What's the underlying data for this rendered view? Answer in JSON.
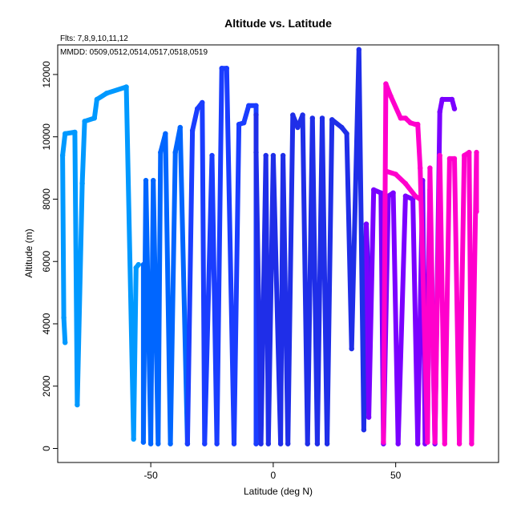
{
  "chart_data": {
    "type": "line",
    "title": "Altitude vs. Latitude",
    "subtitle_flights": "Flts: 7,8,9,10,11,12",
    "subtitle_dates": "MMDD: 0509,0512,0514,0517,0518,0519",
    "xlabel": "Latitude (deg N)",
    "ylabel": "Altitude (m)",
    "xlim": [
      -88,
      92
    ],
    "ylim": [
      -450,
      12950
    ],
    "xticks": [
      -50,
      0,
      50
    ],
    "xtick_labels": [
      "-50",
      "0",
      "50"
    ],
    "yticks": [
      0,
      2000,
      4000,
      6000,
      8000,
      10000,
      12000
    ],
    "ytick_labels": [
      "0",
      "2000",
      "4000",
      "6000",
      "8000",
      "10000",
      "12000"
    ],
    "grid": false,
    "legend": "none",
    "series": [
      {
        "color": "#0099ff",
        "points": [
          [
            -85,
            3400
          ],
          [
            -85.5,
            4200
          ],
          [
            -86,
            9400
          ],
          [
            -85,
            10100
          ],
          [
            -81,
            10150
          ],
          [
            -80,
            1400
          ],
          [
            -78,
            8500
          ],
          [
            -77,
            10500
          ],
          [
            -73,
            10600
          ],
          [
            -72,
            11200
          ],
          [
            -68,
            11400
          ],
          [
            -60,
            11600
          ],
          [
            -57,
            300
          ],
          [
            -56,
            5800
          ],
          [
            -55,
            5900
          ]
        ]
      },
      {
        "color": "#0066ff",
        "points": [
          [
            -53,
            5900
          ],
          [
            -53,
            200
          ],
          [
            -52,
            8600
          ],
          [
            -50,
            150
          ],
          [
            -49,
            8600
          ],
          [
            -47,
            150
          ],
          [
            -46,
            9500
          ],
          [
            -44,
            10100
          ],
          [
            -42,
            150
          ],
          [
            -40,
            9500
          ],
          [
            -38,
            10300
          ],
          [
            -35,
            150
          ]
        ]
      },
      {
        "color": "#1a3dff",
        "points": [
          [
            -35,
            150
          ],
          [
            -33,
            10200
          ],
          [
            -31,
            10900
          ],
          [
            -29,
            11100
          ],
          [
            -28,
            150
          ],
          [
            -25,
            9400
          ],
          [
            -23,
            150
          ],
          [
            -21,
            12200
          ],
          [
            -19,
            12200
          ],
          [
            -16,
            150
          ],
          [
            -14,
            10400
          ],
          [
            -12,
            10450
          ],
          [
            -10,
            11000
          ],
          [
            -7,
            11000
          ],
          [
            -7,
            150
          ]
        ]
      },
      {
        "color": "#1f2ee8",
        "points": [
          [
            -7,
            10700
          ],
          [
            -7,
            9500
          ],
          [
            -5,
            150
          ],
          [
            -3,
            9400
          ],
          [
            -2,
            150
          ],
          [
            0,
            9400
          ],
          [
            3,
            150
          ],
          [
            4,
            9400
          ],
          [
            6,
            150
          ],
          [
            8,
            10700
          ],
          [
            10,
            10300
          ],
          [
            12,
            10700
          ],
          [
            14,
            150
          ],
          [
            16,
            10600
          ],
          [
            18,
            150
          ],
          [
            20,
            10600
          ],
          [
            22,
            150
          ],
          [
            24,
            10550
          ],
          [
            28,
            10300
          ],
          [
            30,
            10100
          ],
          [
            32,
            3200
          ],
          [
            35,
            12800
          ],
          [
            37,
            600
          ],
          [
            38,
            7200
          ],
          [
            39,
            5000
          ]
        ]
      },
      {
        "color": "#7a00ff",
        "points": [
          [
            38,
            7200
          ],
          [
            39,
            1000
          ],
          [
            41,
            8300
          ],
          [
            44,
            8200
          ],
          [
            45,
            150
          ],
          [
            47,
            8100
          ],
          [
            49,
            8200
          ],
          [
            51,
            150
          ],
          [
            54,
            8100
          ],
          [
            57,
            8000
          ],
          [
            59,
            150
          ],
          [
            61,
            8600
          ],
          [
            62,
            150
          ],
          [
            64,
            8300
          ],
          [
            66,
            150
          ],
          [
            68,
            10800
          ],
          [
            69,
            11200
          ],
          [
            73,
            11200
          ],
          [
            74,
            10900
          ]
        ]
      },
      {
        "color": "#ff00cc",
        "points": [
          [
            45,
            200
          ],
          [
            46,
            11700
          ],
          [
            48,
            11300
          ],
          [
            52,
            10600
          ],
          [
            54,
            10600
          ],
          [
            56,
            10450
          ],
          [
            58,
            10400
          ],
          [
            59,
            10400
          ],
          [
            60,
            9000
          ],
          [
            63,
            200
          ],
          [
            64,
            9000
          ],
          [
            66,
            200
          ],
          [
            68,
            9400
          ],
          [
            70,
            150
          ],
          [
            72,
            9300
          ],
          [
            74,
            9300
          ],
          [
            76,
            150
          ],
          [
            78,
            9400
          ],
          [
            80,
            9500
          ],
          [
            81,
            150
          ],
          [
            83,
            9500
          ],
          [
            83,
            7600
          ]
        ]
      },
      {
        "color": "#ff00cc",
        "points": [
          [
            46,
            8900
          ],
          [
            50,
            8800
          ],
          [
            54,
            8500
          ],
          [
            58,
            8100
          ],
          [
            60,
            8000
          ]
        ]
      }
    ]
  }
}
